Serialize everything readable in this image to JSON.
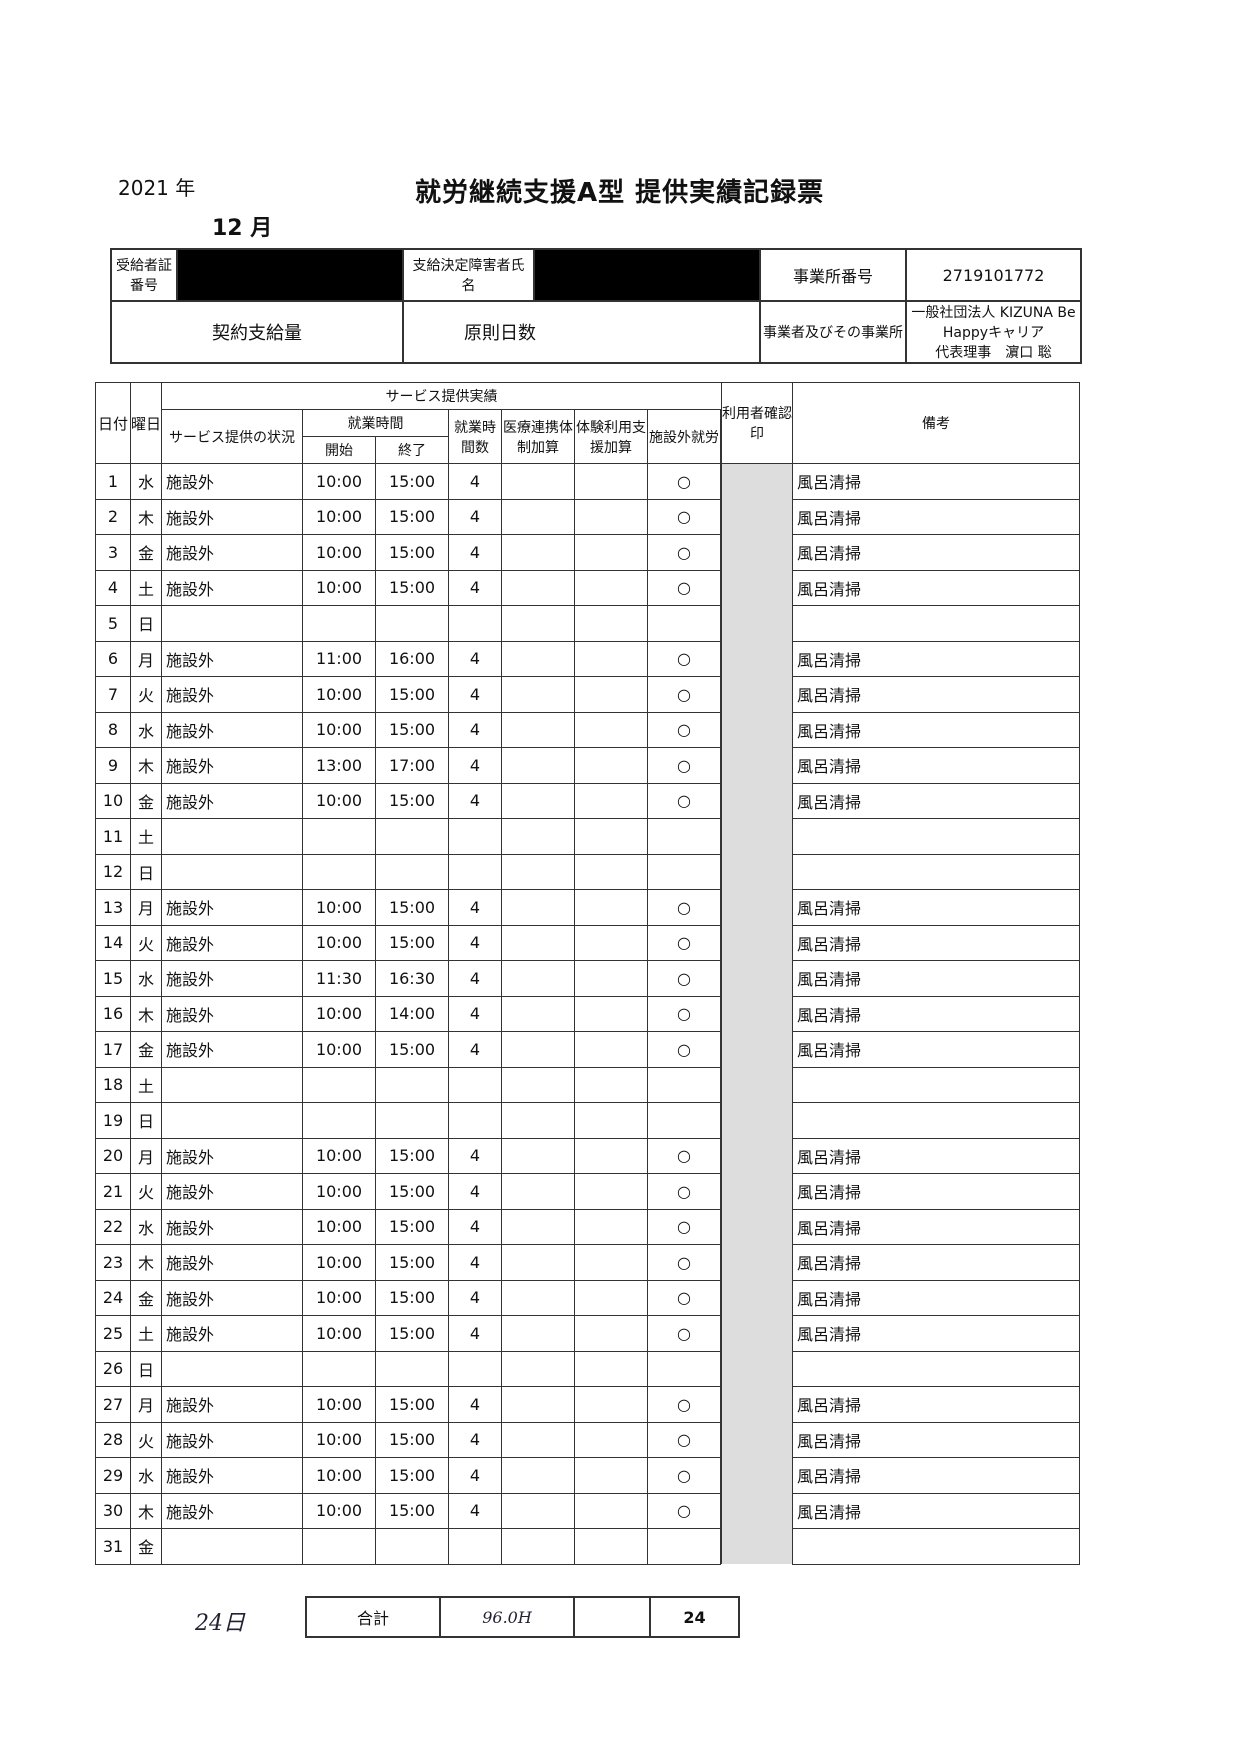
{
  "header": {
    "year": "2021 年",
    "title": "就労継続支援A型 提供実績記録票",
    "month": "12 月"
  },
  "info": {
    "recipient_no_label": "受給者証番号",
    "name_label": "支給決定障害者氏名",
    "office_no_label": "事業所番号",
    "office_no": "2719101772",
    "contract_label": "契約支給量",
    "principle_days_label": "原則日数",
    "provider_label": "事業者及びその事業所",
    "provider": "一般社団法人 KIZUNA Be Happyキャリア",
    "representative": "代表理事　濵口 聡"
  },
  "columns": {
    "date": "日付",
    "weekday": "曜日",
    "service_group": "サービス提供実績",
    "status": "サービス提供の状況",
    "work_time": "就業時間",
    "start": "開始",
    "end": "終了",
    "hours": "就業時間数",
    "medical": "医療連携体制加算",
    "trial": "体験利用支援加算",
    "outside": "施設外就労",
    "user_seal": "利用者確認印",
    "remarks": "備考"
  },
  "rows": [
    {
      "d": "1",
      "w": "水",
      "s": "施設外",
      "st": "10:00",
      "en": "15:00",
      "h": "4",
      "o": "○",
      "r": "風呂清掃"
    },
    {
      "d": "2",
      "w": "木",
      "s": "施設外",
      "st": "10:00",
      "en": "15:00",
      "h": "4",
      "o": "○",
      "r": "風呂清掃"
    },
    {
      "d": "3",
      "w": "金",
      "s": "施設外",
      "st": "10:00",
      "en": "15:00",
      "h": "4",
      "o": "○",
      "r": "風呂清掃"
    },
    {
      "d": "4",
      "w": "土",
      "s": "施設外",
      "st": "10:00",
      "en": "15:00",
      "h": "4",
      "o": "○",
      "r": "風呂清掃"
    },
    {
      "d": "5",
      "w": "日"
    },
    {
      "d": "6",
      "w": "月",
      "s": "施設外",
      "st": "11:00",
      "en": "16:00",
      "h": "4",
      "o": "○",
      "r": "風呂清掃"
    },
    {
      "d": "7",
      "w": "火",
      "s": "施設外",
      "st": "10:00",
      "en": "15:00",
      "h": "4",
      "o": "○",
      "r": "風呂清掃"
    },
    {
      "d": "8",
      "w": "水",
      "s": "施設外",
      "st": "10:00",
      "en": "15:00",
      "h": "4",
      "o": "○",
      "r": "風呂清掃"
    },
    {
      "d": "9",
      "w": "木",
      "s": "施設外",
      "st": "13:00",
      "en": "17:00",
      "h": "4",
      "o": "○",
      "r": "風呂清掃"
    },
    {
      "d": "10",
      "w": "金",
      "s": "施設外",
      "st": "10:00",
      "en": "15:00",
      "h": "4",
      "o": "○",
      "r": "風呂清掃"
    },
    {
      "d": "11",
      "w": "土"
    },
    {
      "d": "12",
      "w": "日"
    },
    {
      "d": "13",
      "w": "月",
      "s": "施設外",
      "st": "10:00",
      "en": "15:00",
      "h": "4",
      "o": "○",
      "r": "風呂清掃"
    },
    {
      "d": "14",
      "w": "火",
      "s": "施設外",
      "st": "10:00",
      "en": "15:00",
      "h": "4",
      "o": "○",
      "r": "風呂清掃"
    },
    {
      "d": "15",
      "w": "水",
      "s": "施設外",
      "st": "11:30",
      "en": "16:30",
      "h": "4",
      "o": "○",
      "r": "風呂清掃"
    },
    {
      "d": "16",
      "w": "木",
      "s": "施設外",
      "st": "10:00",
      "en": "14:00",
      "h": "4",
      "o": "○",
      "r": "風呂清掃"
    },
    {
      "d": "17",
      "w": "金",
      "s": "施設外",
      "st": "10:00",
      "en": "15:00",
      "h": "4",
      "o": "○",
      "r": "風呂清掃"
    },
    {
      "d": "18",
      "w": "土"
    },
    {
      "d": "19",
      "w": "日"
    },
    {
      "d": "20",
      "w": "月",
      "s": "施設外",
      "st": "10:00",
      "en": "15:00",
      "h": "4",
      "o": "○",
      "r": "風呂清掃"
    },
    {
      "d": "21",
      "w": "火",
      "s": "施設外",
      "st": "10:00",
      "en": "15:00",
      "h": "4",
      "o": "○",
      "r": "風呂清掃"
    },
    {
      "d": "22",
      "w": "水",
      "s": "施設外",
      "st": "10:00",
      "en": "15:00",
      "h": "4",
      "o": "○",
      "r": "風呂清掃"
    },
    {
      "d": "23",
      "w": "木",
      "s": "施設外",
      "st": "10:00",
      "en": "15:00",
      "h": "4",
      "o": "○",
      "r": "風呂清掃"
    },
    {
      "d": "24",
      "w": "金",
      "s": "施設外",
      "st": "10:00",
      "en": "15:00",
      "h": "4",
      "o": "○",
      "r": "風呂清掃"
    },
    {
      "d": "25",
      "w": "土",
      "s": "施設外",
      "st": "10:00",
      "en": "15:00",
      "h": "4",
      "o": "○",
      "r": "風呂清掃"
    },
    {
      "d": "26",
      "w": "日"
    },
    {
      "d": "27",
      "w": "月",
      "s": "施設外",
      "st": "10:00",
      "en": "15:00",
      "h": "4",
      "o": "○",
      "r": "風呂清掃"
    },
    {
      "d": "28",
      "w": "火",
      "s": "施設外",
      "st": "10:00",
      "en": "15:00",
      "h": "4",
      "o": "○",
      "r": "風呂清掃"
    },
    {
      "d": "29",
      "w": "水",
      "s": "施設外",
      "st": "10:00",
      "en": "15:00",
      "h": "4",
      "o": "○",
      "r": "風呂清掃"
    },
    {
      "d": "30",
      "w": "木",
      "s": "施設外",
      "st": "10:00",
      "en": "15:00",
      "h": "4",
      "o": "○",
      "r": "風呂清掃"
    },
    {
      "d": "31",
      "w": "金"
    }
  ],
  "footer": {
    "days_handwritten": "24日",
    "total_label": "合計",
    "total_hours": "96.0H",
    "outside_count": "24"
  }
}
